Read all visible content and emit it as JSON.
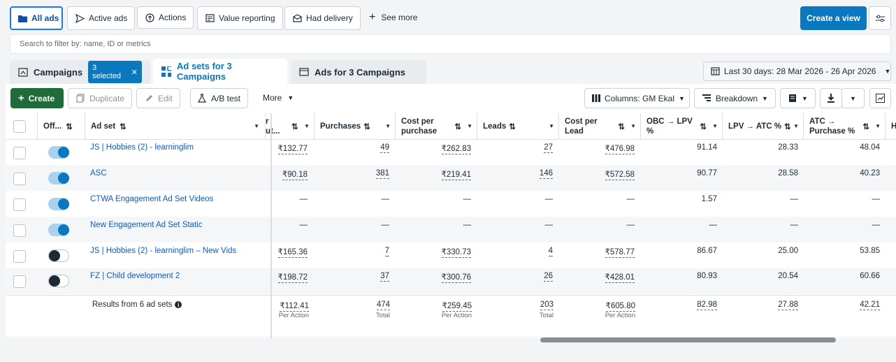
{
  "filters": {
    "all_ads": "All ads",
    "active_ads": "Active ads",
    "actions": "Actions",
    "value_reporting": "Value reporting",
    "had_delivery": "Had delivery",
    "see_more": "See more",
    "create_view": "Create a view"
  },
  "search": {
    "placeholder": "Search to filter by: name, ID or metrics"
  },
  "tabs": {
    "campaigns": "Campaigns",
    "selected": "3 selected",
    "adsets": "Ad sets for 3 Campaigns",
    "ads": "Ads for 3 Campaigns"
  },
  "date_range": "Last 30 days: 28 Mar 2026 - 26 Apr 2026",
  "toolbar": {
    "create": "Create",
    "duplicate": "Duplicate",
    "edit": "Edit",
    "ab_test": "A/B test",
    "more": "More",
    "columns": "Columns: GM Ekal",
    "breakdown": "Breakdown"
  },
  "headers": {
    "off": "Off...",
    "adset": "Ad set",
    "partial1": "r",
    "partial2": "ut...",
    "purchases": "Purchases",
    "cpp1": "Cost per",
    "cpp2": "purchase",
    "leads": "Leads",
    "cpl1": "Cost per",
    "cpl2": "Lead",
    "obc1": "OBC → LPV",
    "obc2": "%",
    "lpv": "LPV → ATC %",
    "atc1": "ATC →",
    "atc2": "Purchase %",
    "partial_h": "H"
  },
  "rows": [
    {
      "name": "JS | Hobbies (2) - learninglim",
      "on": true,
      "cpr": "₹132.77",
      "purchases": "49",
      "cpp": "₹262.83",
      "leads": "27",
      "cpl": "₹476.98",
      "obc": "91.14",
      "lpv": "28.33",
      "atc": "48.04"
    },
    {
      "name": "ASC",
      "on": true,
      "cpr": "₹90.18",
      "purchases": "381",
      "cpp": "₹219.41",
      "leads": "146",
      "cpl": "₹572.58",
      "obc": "90.77",
      "lpv": "28.58",
      "atc": "40.23"
    },
    {
      "name": "CTWA Engagement Ad Set Videos",
      "on": true,
      "cpr": "—",
      "purchases": "—",
      "cpp": "—",
      "leads": "—",
      "cpl": "—",
      "obc": "1.57",
      "lpv": "—",
      "atc": "—"
    },
    {
      "name": "New Engagement Ad Set Static",
      "on": true,
      "cpr": "—",
      "purchases": "—",
      "cpp": "—",
      "leads": "—",
      "cpl": "—",
      "obc": "—",
      "lpv": "—",
      "atc": "—"
    },
    {
      "name": "JS | Hobbies (2) - learninglim – New Vids",
      "on": false,
      "cpr": "₹165.36",
      "purchases": "7",
      "cpp": "₹330.73",
      "leads": "4",
      "cpl": "₹578.77",
      "obc": "86.67",
      "lpv": "25.00",
      "atc": "53.85"
    },
    {
      "name": "FZ | Child development 2",
      "on": false,
      "cpr": "₹198.72",
      "purchases": "37",
      "cpp": "₹300.76",
      "leads": "26",
      "cpl": "₹428.01",
      "obc": "80.93",
      "lpv": "20.54",
      "atc": "60.66"
    }
  ],
  "totals": {
    "label": "Results from 6 ad sets",
    "cpr": "₹112.41",
    "cpr_sub": "Per Action",
    "purchases": "474",
    "purchases_sub": "Total",
    "cpp": "₹259.45",
    "cpp_sub": "Per Action",
    "leads": "203",
    "leads_sub": "Total",
    "cpl": "₹605.80",
    "cpl_sub": "Per Action",
    "obc": "82.98",
    "lpv": "27.88",
    "atc": "42.21"
  }
}
